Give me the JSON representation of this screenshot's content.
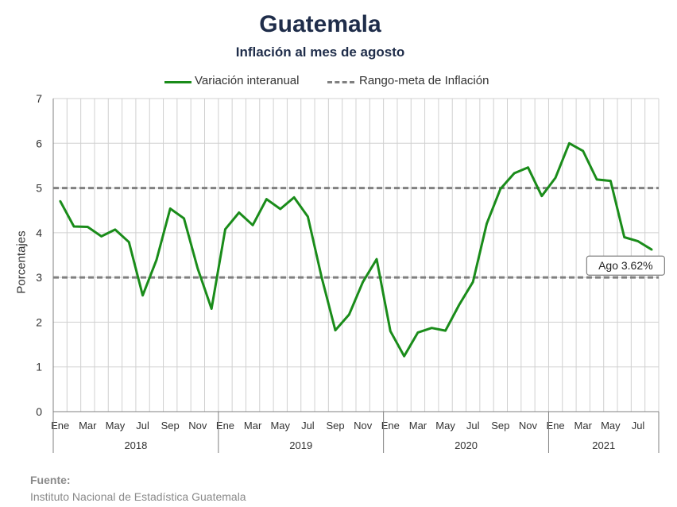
{
  "chart_data": {
    "type": "line",
    "title": "Guatemala",
    "subtitle": "Inflación al mes de agosto",
    "ylabel": "Porcentajes",
    "ylim": [
      0,
      7
    ],
    "yticks": [
      "0",
      "1",
      "2",
      "3",
      "4",
      "5",
      "6",
      "7"
    ],
    "grid": true,
    "legend_position": "top",
    "month_tick_labels": [
      "Ene",
      "Mar",
      "May",
      "Jul",
      "Sep",
      "Nov"
    ],
    "years": [
      "2018",
      "2019",
      "2020",
      "2021"
    ],
    "months_per_year": [
      12,
      12,
      12,
      8
    ],
    "series": [
      {
        "name": "Variación interanual",
        "color": "#1a8c1a",
        "style": "solid",
        "values": [
          4.71,
          4.14,
          4.13,
          3.92,
          4.07,
          3.79,
          2.6,
          3.39,
          4.54,
          4.32,
          3.2,
          2.3,
          4.08,
          4.45,
          4.17,
          4.75,
          4.53,
          4.79,
          4.36,
          3.01,
          1.82,
          2.17,
          2.9,
          3.41,
          1.8,
          1.24,
          1.77,
          1.87,
          1.81,
          2.39,
          2.9,
          4.2,
          4.98,
          5.33,
          5.46,
          4.82,
          5.23,
          6.0,
          5.83,
          5.19,
          5.16,
          3.9,
          3.81,
          3.62
        ]
      },
      {
        "name": "Rango-meta de Inflación",
        "color": "#808080",
        "style": "dashed",
        "bounds": [
          3,
          5
        ]
      }
    ],
    "annotation": {
      "text": "Ago 3.62%",
      "x_index": 43,
      "value": 3.62
    }
  },
  "source": {
    "label": "Fuente:",
    "text": "Instituto Nacional de Estadística Guatemala"
  }
}
